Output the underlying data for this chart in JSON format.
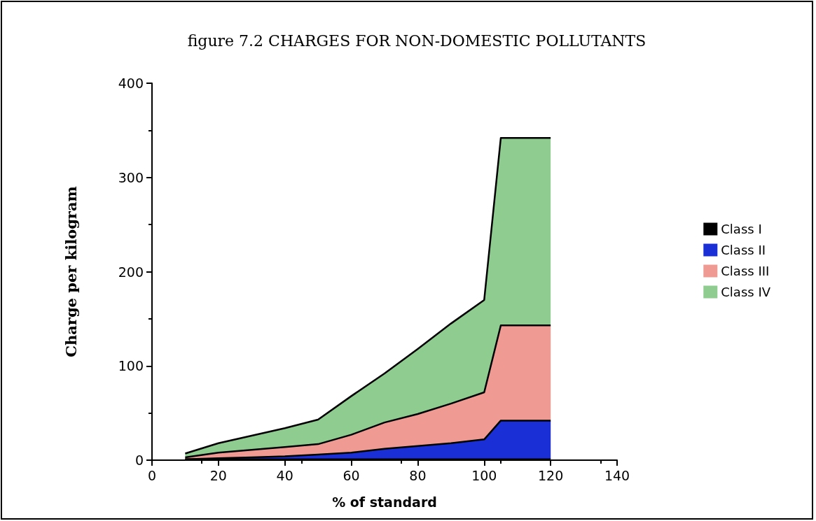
{
  "chart_data": {
    "type": "area",
    "title": "figure 7.2 CHARGES FOR NON-DOMESTIC POLLUTANTS",
    "xlabel": "% of standard",
    "ylabel": "Charge per kilogram",
    "stacked": true,
    "legend": "right",
    "grid": false,
    "marker": "none",
    "x": [
      10,
      20,
      30,
      40,
      50,
      60,
      70,
      80,
      90,
      100,
      105,
      120
    ],
    "series": [
      {
        "name": "Class I",
        "color": "#000000",
        "values": [
          1,
          1,
          1,
          1,
          1,
          1,
          1,
          1,
          1,
          1,
          1,
          1
        ]
      },
      {
        "name": "Class II",
        "color": "#1a2fd6",
        "values": [
          0,
          1,
          2,
          3,
          5,
          7,
          11,
          14,
          17,
          21,
          41,
          41
        ]
      },
      {
        "name": "Class III",
        "color": "#f09a94",
        "values": [
          2,
          6,
          8,
          10,
          11,
          19,
          28,
          34,
          42,
          50,
          101,
          101
        ]
      },
      {
        "name": "Class IV",
        "color": "#8fcc8f",
        "values": [
          4,
          10,
          15,
          20,
          26,
          41,
          52,
          69,
          85,
          98,
          199,
          199
        ]
      }
    ],
    "xlim": [
      0,
      140
    ],
    "xticks": [
      0,
      20,
      40,
      60,
      80,
      100,
      120,
      140
    ],
    "ylim": [
      0,
      400
    ],
    "yticks": [
      0,
      100,
      200,
      300,
      400
    ]
  }
}
